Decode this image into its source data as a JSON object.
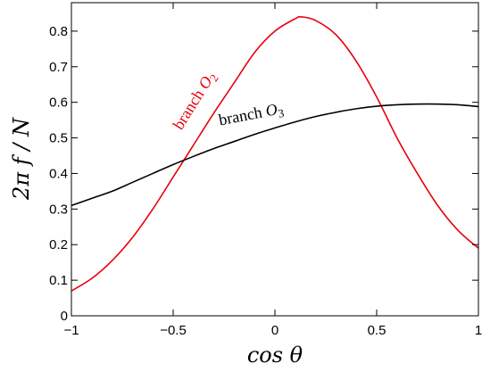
{
  "chart_data": {
    "type": "line",
    "xlabel": "cos θ",
    "ylabel": "2π f / N",
    "xlim": [
      -1,
      1
    ],
    "ylim": [
      0,
      0.88
    ],
    "x_ticks": [
      {
        "value": -1,
        "label": "−1"
      },
      {
        "value": -0.5,
        "label": "−0.5"
      },
      {
        "value": 0,
        "label": "0"
      },
      {
        "value": 0.5,
        "label": "0.5"
      },
      {
        "value": 1,
        "label": "1"
      }
    ],
    "y_ticks": [
      {
        "value": 0,
        "label": "0"
      },
      {
        "value": 0.1,
        "label": "0.1"
      },
      {
        "value": 0.2,
        "label": "0.2"
      },
      {
        "value": 0.3,
        "label": "0.3"
      },
      {
        "value": 0.4,
        "label": "0.4"
      },
      {
        "value": 0.5,
        "label": "0.5"
      },
      {
        "value": 0.6,
        "label": "0.6"
      },
      {
        "value": 0.7,
        "label": "0.7"
      },
      {
        "value": 0.8,
        "label": "0.8"
      }
    ],
    "grid": false,
    "series": [
      {
        "name": "branch O2",
        "label_text": "branch ",
        "label_symbol": "O",
        "label_sub": "2",
        "color": "#e8000b",
        "x": [
          -1,
          -0.9,
          -0.8,
          -0.7,
          -0.6,
          -0.5,
          -0.4,
          -0.3,
          -0.2,
          -0.1,
          0,
          0.1,
          0.13,
          0.2,
          0.3,
          0.4,
          0.5,
          0.6,
          0.7,
          0.8,
          0.9,
          1
        ],
        "y": [
          0.07,
          0.105,
          0.155,
          0.22,
          0.3,
          0.39,
          0.48,
          0.57,
          0.655,
          0.74,
          0.8,
          0.835,
          0.84,
          0.83,
          0.79,
          0.715,
          0.615,
          0.5,
          0.4,
          0.31,
          0.24,
          0.19
        ]
      },
      {
        "name": "branch O3",
        "label_text": "branch ",
        "label_symbol": "O",
        "label_sub": "3",
        "color": "#000000",
        "x": [
          -1,
          -0.9,
          -0.8,
          -0.7,
          -0.6,
          -0.5,
          -0.4,
          -0.3,
          -0.2,
          -0.1,
          0,
          0.1,
          0.2,
          0.3,
          0.4,
          0.5,
          0.6,
          0.7,
          0.8,
          0.9,
          1
        ],
        "y": [
          0.31,
          0.33,
          0.35,
          0.375,
          0.4,
          0.425,
          0.448,
          0.47,
          0.49,
          0.51,
          0.528,
          0.545,
          0.56,
          0.572,
          0.582,
          0.589,
          0.593,
          0.595,
          0.595,
          0.593,
          0.588
        ]
      }
    ]
  }
}
